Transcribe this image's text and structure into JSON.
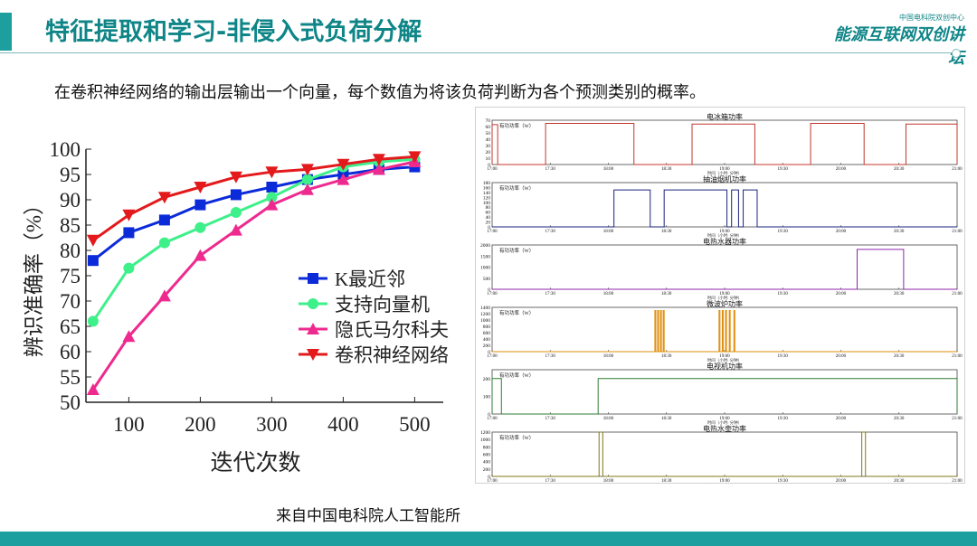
{
  "header": {
    "title": "特征提取和学习-非侵入式负荷分解",
    "logo_small": "中国电科院双创中心",
    "logo_main": "能源互联网双创讲坛"
  },
  "subtitle": "在卷积神经网络的输出层输出一个向量，每个数值为将该负荷判断为各个预测类别的概率。",
  "source": "来自中国电科院人工智能所",
  "colors": {
    "accent": "#1d9fa0",
    "title": "#0f8587"
  },
  "chart_data": [
    {
      "type": "line",
      "xlabel": "迭代次数",
      "ylabel": "辨识准确率（%）",
      "x": [
        50,
        100,
        150,
        200,
        250,
        300,
        350,
        400,
        450,
        500
      ],
      "xticks": [
        100,
        200,
        300,
        400,
        500
      ],
      "yticks": [
        50,
        55,
        60,
        65,
        70,
        75,
        80,
        85,
        90,
        95,
        100
      ],
      "xlim": [
        40,
        540
      ],
      "ylim": [
        50,
        100
      ],
      "series": [
        {
          "name": "K最近邻",
          "color": "#0b2bd9",
          "marker": "square",
          "values": [
            78,
            83.5,
            86,
            89,
            91,
            92.5,
            94,
            95,
            96,
            96.5
          ]
        },
        {
          "name": "支持向量机",
          "color": "#3ef08a",
          "marker": "circle",
          "values": [
            66,
            76.5,
            81.5,
            84.5,
            87.5,
            90.5,
            94,
            96.5,
            97.5,
            98
          ]
        },
        {
          "name": "隐氏马尔科夫",
          "color": "#ee2a8f",
          "marker": "triangle-up",
          "values": [
            52.5,
            63,
            71,
            79,
            84,
            89,
            92,
            94,
            96,
            97.5
          ]
        },
        {
          "name": "卷积神经网络",
          "color": "#e3191c",
          "marker": "triangle-down",
          "values": [
            82,
            87,
            90.5,
            92.5,
            94.5,
            95.5,
            96,
            97,
            98,
            98.5
          ]
        }
      ]
    },
    {
      "type": "line",
      "panels": [
        {
          "title": "电冰箱功率",
          "ylabel": "有功功率（W）",
          "color": "#c0392b",
          "yticks": [
            0,
            10,
            20,
            30,
            40,
            50,
            60,
            70
          ],
          "ymax": 70,
          "segments": [
            [
              0.0,
              0.012,
              63
            ],
            [
              0.115,
              0.305,
              65
            ],
            [
              0.43,
              0.565,
              64
            ],
            [
              0.685,
              0.8,
              65
            ],
            [
              0.89,
              1.0,
              64
            ]
          ]
        },
        {
          "title": "抽油烟机功率",
          "ylabel": "有功功率（W）",
          "color": "#1a237e",
          "yticks": [
            0,
            20,
            40,
            60,
            80,
            100,
            120,
            140,
            160,
            180
          ],
          "ymax": 180,
          "segments": [
            [
              0.262,
              0.34,
              150
            ],
            [
              0.37,
              0.505,
              150
            ],
            [
              0.515,
              0.53,
              150
            ],
            [
              0.54,
              0.57,
              150
            ]
          ]
        },
        {
          "title": "电热水器功率",
          "ylabel": "有功功率（W）",
          "color": "#8e24aa",
          "yticks": [
            0,
            500,
            1000,
            1500,
            2000
          ],
          "ymax": 2000,
          "segments": [
            [
              0.785,
              0.885,
              1800
            ]
          ]
        },
        {
          "title": "微波炉功率",
          "ylabel": "有功功率（W）",
          "color": "#e08e0b",
          "yticks": [
            0,
            200,
            400,
            600,
            800,
            1000,
            1200,
            1400
          ],
          "ymax": 1400,
          "segments": [
            [
              0.35,
              0.352,
              1300
            ],
            [
              0.356,
              0.358,
              1300
            ],
            [
              0.362,
              0.364,
              1300
            ],
            [
              0.368,
              0.37,
              1300
            ],
            [
              0.488,
              0.49,
              1300
            ],
            [
              0.495,
              0.497,
              1300
            ],
            [
              0.502,
              0.504,
              1300
            ],
            [
              0.51,
              0.512,
              1300
            ],
            [
              0.52,
              0.522,
              1300
            ]
          ]
        },
        {
          "title": "电视机功率",
          "ylabel": "有功功率（W）",
          "color": "#2e7d32",
          "yticks": [
            0,
            100,
            200
          ],
          "ymax": 250,
          "segments": [
            [
              0.0,
              0.02,
              200
            ],
            [
              0.228,
              1.0,
              200
            ]
          ]
        },
        {
          "title": "电热水壶功率",
          "ylabel": "有功功率（W）",
          "color": "#827717",
          "yticks": [
            0,
            200,
            400,
            600,
            800,
            1000,
            1200
          ],
          "ymax": 1200,
          "segments": [
            [
              0.23,
              0.238,
              1200
            ],
            [
              0.795,
              0.803,
              1200
            ]
          ]
        }
      ],
      "xticks": [
        "17:00",
        "17:30",
        "18:00",
        "18:30",
        "19:00",
        "19:30",
        "20:00",
        "20:30",
        "21:00"
      ],
      "xlabel": "时间（小时: 分钟）"
    }
  ]
}
